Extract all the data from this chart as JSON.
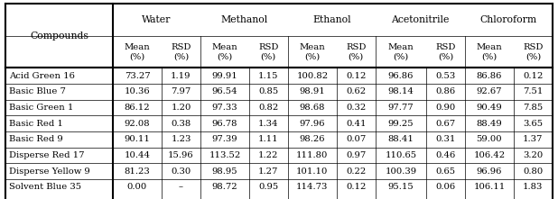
{
  "solvents": [
    "Water",
    "Methanol",
    "Ethanol",
    "Acetonitrile",
    "Chloroform"
  ],
  "compounds": [
    "Acid Green 16",
    "Basic Blue 7",
    "Basic Green 1",
    "Basic Red 1",
    "Basic Red 9",
    "Disperse Red 17",
    "Disperse Yellow 9",
    "Solvent Blue 35"
  ],
  "data": [
    [
      73.27,
      1.19,
      99.91,
      1.15,
      100.82,
      0.12,
      96.86,
      0.53,
      86.86,
      0.12
    ],
    [
      10.36,
      7.97,
      96.54,
      0.85,
      98.91,
      0.62,
      98.14,
      0.86,
      92.67,
      7.51
    ],
    [
      86.12,
      1.2,
      97.33,
      0.82,
      98.68,
      0.32,
      97.77,
      0.9,
      90.49,
      7.85
    ],
    [
      92.08,
      0.38,
      96.78,
      1.34,
      97.96,
      0.41,
      99.25,
      0.67,
      88.49,
      3.65
    ],
    [
      90.11,
      1.23,
      97.39,
      1.11,
      98.26,
      0.07,
      88.41,
      0.31,
      59.0,
      1.37
    ],
    [
      10.44,
      15.96,
      113.52,
      1.22,
      111.8,
      0.97,
      110.65,
      0.46,
      106.42,
      3.2
    ],
    [
      81.23,
      0.3,
      98.95,
      1.27,
      101.1,
      0.22,
      100.39,
      0.65,
      96.96,
      0.8
    ],
    [
      0.0,
      null,
      98.72,
      0.95,
      114.73,
      0.12,
      95.15,
      0.06,
      106.11,
      1.83
    ]
  ],
  "bg_color": "#ffffff",
  "text_color": "#000000",
  "font_size": 7.2,
  "header_font_size": 7.8
}
